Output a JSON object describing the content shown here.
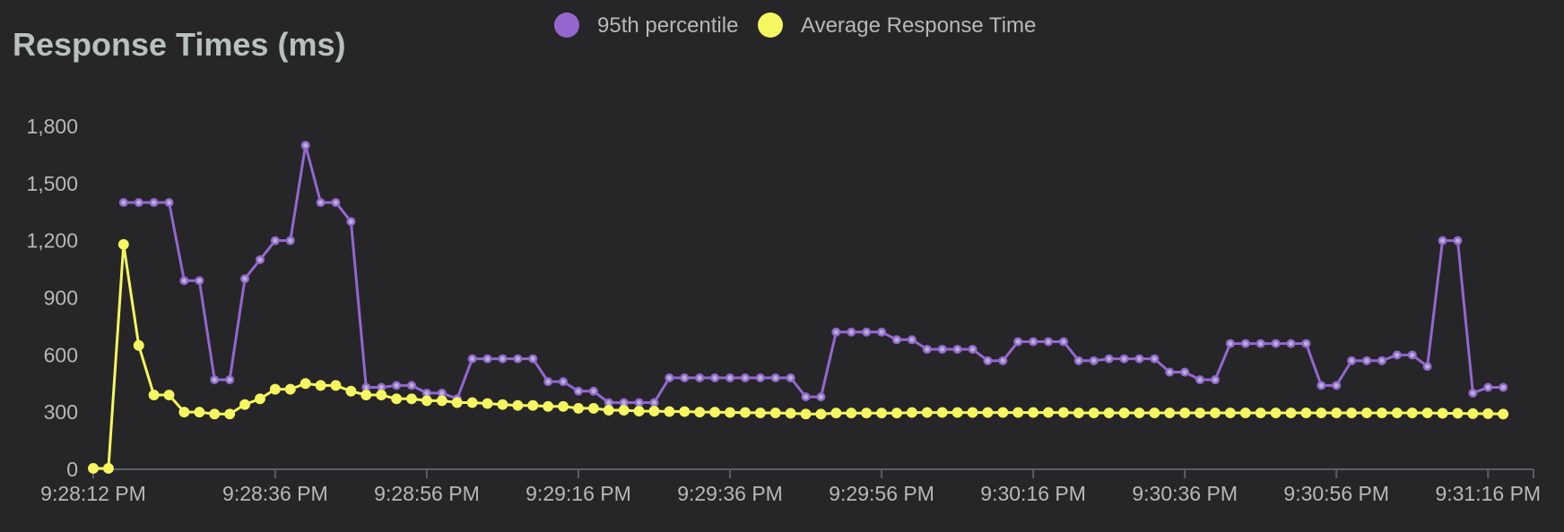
{
  "chart_data": {
    "type": "line",
    "title": "Response Times (ms)",
    "xlabel": "",
    "ylabel": "",
    "ylim": [
      0,
      1800
    ],
    "y_ticks": [
      0,
      300,
      600,
      900,
      1200,
      1500,
      1800
    ],
    "y_tick_labels": [
      "0",
      "300",
      "600",
      "900",
      "1,200",
      "1,500",
      "1,800"
    ],
    "x_ticks": [
      {
        "t": 0,
        "label": "9:28:12 PM"
      },
      {
        "t": 24,
        "label": "9:28:36 PM"
      },
      {
        "t": 44,
        "label": "9:28:56 PM"
      },
      {
        "t": 64,
        "label": "9:29:16 PM"
      },
      {
        "t": 84,
        "label": "9:29:36 PM"
      },
      {
        "t": 104,
        "label": "9:29:56 PM"
      },
      {
        "t": 124,
        "label": "9:30:16 PM"
      },
      {
        "t": 144,
        "label": "9:30:36 PM"
      },
      {
        "t": 164,
        "label": "9:30:56 PM"
      },
      {
        "t": 184,
        "label": "9:31:16 PM"
      }
    ],
    "xlim": [
      0,
      190
    ],
    "grid": false,
    "legend_position": "top-center",
    "series": [
      {
        "name": "95th percentile",
        "color": "#9467cf",
        "points": [
          [
            4,
            1400
          ],
          [
            6,
            1400
          ],
          [
            8,
            1400
          ],
          [
            10,
            1400
          ],
          [
            12,
            990
          ],
          [
            14,
            990
          ],
          [
            16,
            470
          ],
          [
            18,
            470
          ],
          [
            20,
            1000
          ],
          [
            22,
            1100
          ],
          [
            24,
            1200
          ],
          [
            26,
            1200
          ],
          [
            28,
            1700
          ],
          [
            30,
            1400
          ],
          [
            32,
            1400
          ],
          [
            34,
            1300
          ],
          [
            36,
            430
          ],
          [
            38,
            430
          ],
          [
            40,
            440
          ],
          [
            42,
            440
          ],
          [
            44,
            400
          ],
          [
            46,
            400
          ],
          [
            48,
            370
          ],
          [
            50,
            580
          ],
          [
            52,
            580
          ],
          [
            54,
            580
          ],
          [
            56,
            580
          ],
          [
            58,
            580
          ],
          [
            60,
            460
          ],
          [
            62,
            460
          ],
          [
            64,
            410
          ],
          [
            66,
            410
          ],
          [
            68,
            350
          ],
          [
            70,
            350
          ],
          [
            72,
            350
          ],
          [
            74,
            350
          ],
          [
            76,
            480
          ],
          [
            78,
            480
          ],
          [
            80,
            480
          ],
          [
            82,
            480
          ],
          [
            84,
            480
          ],
          [
            86,
            480
          ],
          [
            88,
            480
          ],
          [
            90,
            480
          ],
          [
            92,
            480
          ],
          [
            94,
            380
          ],
          [
            96,
            380
          ],
          [
            98,
            720
          ],
          [
            100,
            720
          ],
          [
            102,
            720
          ],
          [
            104,
            720
          ],
          [
            106,
            680
          ],
          [
            108,
            680
          ],
          [
            110,
            630
          ],
          [
            112,
            630
          ],
          [
            114,
            630
          ],
          [
            116,
            630
          ],
          [
            118,
            570
          ],
          [
            120,
            570
          ],
          [
            122,
            670
          ],
          [
            124,
            670
          ],
          [
            126,
            670
          ],
          [
            128,
            670
          ],
          [
            130,
            570
          ],
          [
            132,
            570
          ],
          [
            134,
            580
          ],
          [
            136,
            580
          ],
          [
            138,
            580
          ],
          [
            140,
            580
          ],
          [
            142,
            510
          ],
          [
            144,
            510
          ],
          [
            146,
            470
          ],
          [
            148,
            470
          ],
          [
            150,
            660
          ],
          [
            152,
            660
          ],
          [
            154,
            660
          ],
          [
            156,
            660
          ],
          [
            158,
            660
          ],
          [
            160,
            660
          ],
          [
            162,
            440
          ],
          [
            164,
            440
          ],
          [
            166,
            570
          ],
          [
            168,
            570
          ],
          [
            170,
            570
          ],
          [
            172,
            600
          ],
          [
            174,
            600
          ],
          [
            176,
            540
          ],
          [
            178,
            1200
          ],
          [
            180,
            1200
          ],
          [
            182,
            400
          ],
          [
            184,
            430
          ],
          [
            186,
            430
          ]
        ]
      },
      {
        "name": "Average Response Time",
        "color": "#f5f760",
        "points": [
          [
            0,
            5
          ],
          [
            2,
            5
          ],
          [
            4,
            1180
          ],
          [
            6,
            650
          ],
          [
            8,
            390
          ],
          [
            10,
            390
          ],
          [
            12,
            300
          ],
          [
            14,
            300
          ],
          [
            16,
            290
          ],
          [
            18,
            290
          ],
          [
            20,
            340
          ],
          [
            22,
            370
          ],
          [
            24,
            420
          ],
          [
            26,
            420
          ],
          [
            28,
            450
          ],
          [
            30,
            440
          ],
          [
            32,
            440
          ],
          [
            34,
            410
          ],
          [
            36,
            390
          ],
          [
            38,
            390
          ],
          [
            40,
            370
          ],
          [
            42,
            370
          ],
          [
            44,
            360
          ],
          [
            46,
            360
          ],
          [
            48,
            350
          ],
          [
            50,
            350
          ],
          [
            52,
            345
          ],
          [
            54,
            340
          ],
          [
            56,
            335
          ],
          [
            58,
            335
          ],
          [
            60,
            330
          ],
          [
            62,
            330
          ],
          [
            64,
            320
          ],
          [
            66,
            320
          ],
          [
            68,
            310
          ],
          [
            70,
            310
          ],
          [
            72,
            305
          ],
          [
            74,
            305
          ],
          [
            76,
            303
          ],
          [
            78,
            303
          ],
          [
            80,
            300
          ],
          [
            82,
            300
          ],
          [
            84,
            298
          ],
          [
            86,
            298
          ],
          [
            88,
            296
          ],
          [
            90,
            296
          ],
          [
            92,
            294
          ],
          [
            94,
            290
          ],
          [
            96,
            290
          ],
          [
            98,
            295
          ],
          [
            100,
            295
          ],
          [
            102,
            295
          ],
          [
            104,
            295
          ],
          [
            106,
            295
          ],
          [
            108,
            298
          ],
          [
            110,
            298
          ],
          [
            112,
            298
          ],
          [
            114,
            298
          ],
          [
            116,
            298
          ],
          [
            118,
            298
          ],
          [
            120,
            298
          ],
          [
            122,
            298
          ],
          [
            124,
            298
          ],
          [
            126,
            298
          ],
          [
            128,
            298
          ],
          [
            130,
            296
          ],
          [
            132,
            296
          ],
          [
            134,
            296
          ],
          [
            136,
            296
          ],
          [
            138,
            296
          ],
          [
            140,
            296
          ],
          [
            142,
            296
          ],
          [
            144,
            296
          ],
          [
            146,
            296
          ],
          [
            148,
            296
          ],
          [
            150,
            296
          ],
          [
            152,
            296
          ],
          [
            154,
            296
          ],
          [
            156,
            296
          ],
          [
            158,
            296
          ],
          [
            160,
            296
          ],
          [
            162,
            296
          ],
          [
            164,
            296
          ],
          [
            166,
            296
          ],
          [
            168,
            296
          ],
          [
            170,
            296
          ],
          [
            172,
            296
          ],
          [
            174,
            296
          ],
          [
            176,
            296
          ],
          [
            178,
            294
          ],
          [
            180,
            294
          ],
          [
            182,
            292
          ],
          [
            184,
            292
          ],
          [
            186,
            290
          ]
        ]
      }
    ]
  },
  "colors": {
    "background": "#262628",
    "title": "#b9c0be",
    "text": "#b8b8b8",
    "axis": "#596063"
  }
}
